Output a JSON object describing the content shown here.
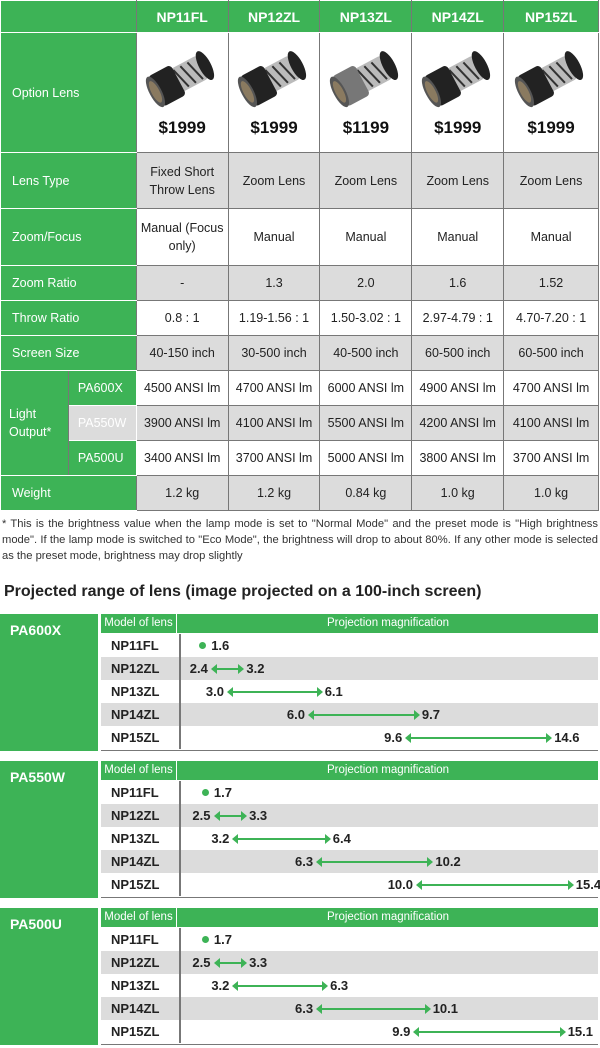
{
  "spec_table": {
    "models": [
      "NP11FL",
      "NP12ZL",
      "NP13ZL",
      "NP14ZL",
      "NP15ZL"
    ],
    "option_lens_label": "Option Lens",
    "prices": [
      "$1999",
      "$1999",
      "$1199",
      "$1999",
      "$1999"
    ],
    "rows": [
      {
        "label": "Lens Type",
        "values": [
          "Fixed Short Throw Lens",
          "Zoom Lens",
          "Zoom Lens",
          "Zoom Lens",
          "Zoom Lens"
        ]
      },
      {
        "label": "Zoom/Focus",
        "values": [
          "Manual (Focus only)",
          "Manual",
          "Manual",
          "Manual",
          "Manual"
        ]
      },
      {
        "label": "Zoom Ratio",
        "values": [
          "-",
          "1.3",
          "2.0",
          "1.6",
          "1.52"
        ]
      },
      {
        "label": "Throw Ratio",
        "values": [
          "0.8 : 1",
          "1.19-1.56 : 1",
          "1.50-3.02 : 1",
          "2.97-4.79 : 1",
          "4.70-7.20 : 1"
        ]
      },
      {
        "label": "Screen Size",
        "values": [
          "40-150 inch",
          "30-500 inch",
          "40-500 inch",
          "60-500 inch",
          "60-500 inch"
        ]
      }
    ],
    "light_output_label": "Light Output*",
    "light_output": [
      {
        "model": "PA600X",
        "values": [
          "4500 ANSI lm",
          "4700 ANSI lm",
          "6000 ANSI lm",
          "4900 ANSI lm",
          "4700 ANSI lm"
        ]
      },
      {
        "model": "PA550W",
        "values": [
          "3900 ANSI lm",
          "4100 ANSI lm",
          "5500 ANSI lm",
          "4200 ANSI lm",
          "4100 ANSI lm"
        ]
      },
      {
        "model": "PA500U",
        "values": [
          "3400 ANSI lm",
          "3700 ANSI lm",
          "5000 ANSI lm",
          "3800 ANSI lm",
          "3700 ANSI lm"
        ]
      }
    ],
    "weight": {
      "label": "Weight",
      "values": [
        "1.2 kg",
        "1.2 kg",
        "0.84 kg",
        "1.0 kg",
        "1.0 kg"
      ]
    }
  },
  "footnote": "* This is the brightness value when the lamp mode is set to \"Normal Mode\" and the preset mode is \"High brightness mode\". If the lamp mode is switched to \"Eco Mode\", the brightness will drop to about 80%. If any other mode is selected as the preset mode, brightness may drop slightly",
  "range_title": "Projected range of lens (image projected on a 100-inch screen)",
  "range_headers": {
    "model": "Model of lens",
    "magnification": "Projection magnification"
  },
  "ranges": [
    {
      "projector": "PA600X",
      "rows": [
        {
          "model": "NP11FL",
          "min": "1.6"
        },
        {
          "model": "NP12ZL",
          "min": "2.4",
          "max": "3.2"
        },
        {
          "model": "NP13ZL",
          "min": "3.0",
          "max": "6.1"
        },
        {
          "model": "NP14ZL",
          "min": "6.0",
          "max": "9.7"
        },
        {
          "model": "NP15ZL",
          "min": "9.6",
          "max": "14.6"
        }
      ]
    },
    {
      "projector": "PA550W",
      "rows": [
        {
          "model": "NP11FL",
          "min": "1.7"
        },
        {
          "model": "NP12ZL",
          "min": "2.5",
          "max": "3.3"
        },
        {
          "model": "NP13ZL",
          "min": "3.2",
          "max": "6.4"
        },
        {
          "model": "NP14ZL",
          "min": "6.3",
          "max": "10.2"
        },
        {
          "model": "NP15ZL",
          "min": "10.0",
          "max": "15.4"
        }
      ]
    },
    {
      "projector": "PA500U",
      "rows": [
        {
          "model": "NP11FL",
          "min": "1.7"
        },
        {
          "model": "NP12ZL",
          "min": "2.5",
          "max": "3.3"
        },
        {
          "model": "NP13ZL",
          "min": "3.2",
          "max": "6.3"
        },
        {
          "model": "NP14ZL",
          "min": "6.3",
          "max": "10.1"
        },
        {
          "model": "NP15ZL",
          "min": "9.9",
          "max": "15.1"
        }
      ]
    }
  ],
  "colors": {
    "accent": "#3db356",
    "row_gray": "#dcdcdc"
  }
}
